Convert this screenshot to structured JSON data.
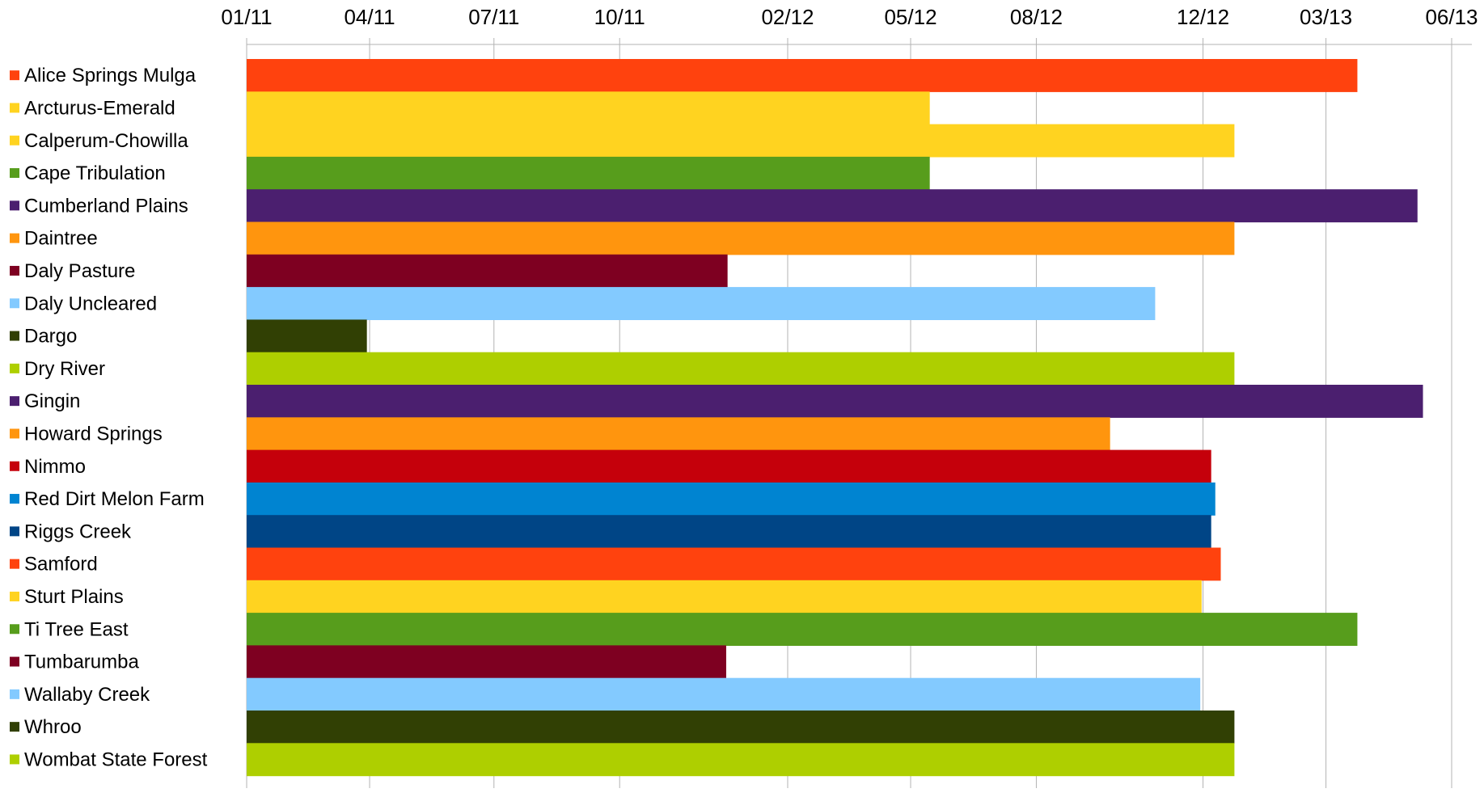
{
  "chart_data": {
    "type": "bar",
    "orientation": "horizontal",
    "x_axis_position": "top",
    "x_axis_type": "date",
    "x_ticks": [
      "01/11",
      "04/11",
      "07/11",
      "10/11",
      "02/12",
      "05/12",
      "08/12",
      "12/12",
      "03/13",
      "06/13"
    ],
    "xlim": [
      "2011-01-01",
      "2013-06-01"
    ],
    "grid": "vertical",
    "title": "",
    "xlabel": "",
    "ylabel": "",
    "categories": [
      {
        "label": "Alice Springs Mulga",
        "end": "2013-03-24",
        "color": "#FF420E"
      },
      {
        "label": "Arcturus-Emerald",
        "end": "2012-05-15",
        "color": "#FFD320"
      },
      {
        "label": "Calperum-Chowilla",
        "end": "2012-12-24",
        "color": "#FFD320"
      },
      {
        "label": "Cape Tribulation",
        "end": "2012-05-15",
        "color": "#579D1C"
      },
      {
        "label": "Cumberland Plains",
        "end": "2013-05-07",
        "color": "#4B1F6F"
      },
      {
        "label": "Daintree",
        "end": "2012-12-24",
        "color": "#FF950E"
      },
      {
        "label": "Daly Pasture",
        "end": "2011-12-19",
        "color": "#7E0021"
      },
      {
        "label": "Daly Uncleared",
        "end": "2012-10-27",
        "color": "#83CAFF"
      },
      {
        "label": "Dargo",
        "end": "2011-03-30",
        "color": "#314004"
      },
      {
        "label": "Dry River",
        "end": "2012-12-24",
        "color": "#AECF00"
      },
      {
        "label": "Gingin",
        "end": "2013-05-11",
        "color": "#4B1F6F"
      },
      {
        "label": "Howard Springs",
        "end": "2012-09-24",
        "color": "#FF950E"
      },
      {
        "label": "Nimmo",
        "end": "2012-12-07",
        "color": "#C5000B"
      },
      {
        "label": "Red Dirt Melon Farm",
        "end": "2012-12-10",
        "color": "#0084D1"
      },
      {
        "label": "Riggs Creek",
        "end": "2012-12-07",
        "color": "#004586"
      },
      {
        "label": "Samford",
        "end": "2012-12-14",
        "color": "#FF420E"
      },
      {
        "label": "Sturt Plains",
        "end": "2012-11-30",
        "color": "#FFD320"
      },
      {
        "label": "Ti Tree East",
        "end": "2013-03-24",
        "color": "#579D1C"
      },
      {
        "label": "Tumbarumba",
        "end": "2011-12-18",
        "color": "#7E0021"
      },
      {
        "label": "Wallaby Creek",
        "end": "2012-11-29",
        "color": "#83CAFF"
      },
      {
        "label": "Whroo",
        "end": "2012-12-24",
        "color": "#314004"
      },
      {
        "label": "Wombat State Forest",
        "end": "2012-12-24",
        "color": "#AECF00"
      }
    ]
  }
}
